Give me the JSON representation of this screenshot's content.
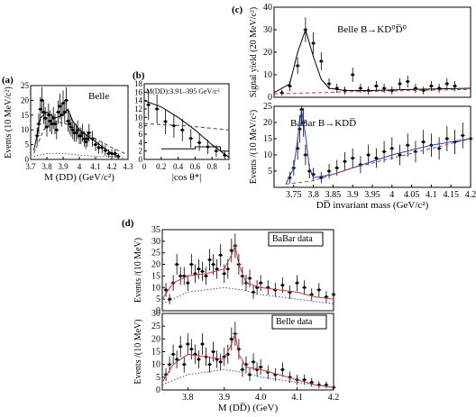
{
  "chart_data": [
    {
      "id": "a",
      "type": "scatter",
      "panel_label": "(a)",
      "annotation": "Belle",
      "xlabel": "M (DD) (GeV/c²)",
      "ylabel": "Events (10 MeV/c²)",
      "xlim": [
        3.7,
        4.3
      ],
      "ylim": [
        0,
        25
      ],
      "xticks": [
        "3.7",
        "3.8",
        "3.9",
        "4",
        "4.1",
        "4.2",
        "4.3"
      ],
      "yticks": [
        "0",
        "5",
        "10",
        "15",
        "20",
        "25"
      ],
      "series": [
        {
          "style": "points",
          "x": [
            3.74,
            3.75,
            3.76,
            3.77,
            3.78,
            3.79,
            3.8,
            3.81,
            3.82,
            3.83,
            3.84,
            3.85,
            3.86,
            3.87,
            3.88,
            3.89,
            3.9,
            3.91,
            3.92,
            3.93,
            3.94,
            3.95,
            3.96,
            3.97,
            3.98,
            3.99,
            4.0,
            4.01,
            4.02,
            4.03,
            4.04,
            4.05,
            4.06,
            4.08,
            4.1,
            4.12,
            4.14,
            4.16,
            4.18,
            4.2,
            4.22,
            4.24
          ],
          "y": [
            8,
            12,
            17,
            20,
            16,
            14,
            11,
            15,
            13,
            12,
            14,
            12,
            10,
            16,
            18,
            15,
            19,
            16,
            20,
            13,
            12,
            11,
            10,
            9,
            9,
            10,
            8,
            8,
            9,
            7,
            6,
            7,
            9,
            7,
            5,
            4,
            4,
            3,
            2,
            2,
            2,
            1
          ]
        },
        {
          "style": "curve",
          "x": [
            3.72,
            3.76,
            3.8,
            3.85,
            3.9,
            3.93,
            3.96,
            4.0,
            4.05,
            4.1,
            4.15,
            4.2,
            4.25
          ],
          "y": [
            3,
            14,
            16,
            14,
            15,
            17,
            13,
            10,
            8,
            6,
            4,
            2,
            1
          ]
        },
        {
          "style": "dashed",
          "x": [
            3.72,
            3.78,
            3.85,
            3.92,
            4.0,
            4.1,
            4.2,
            4.28
          ],
          "y": [
            2,
            10,
            13,
            12,
            10,
            7,
            4,
            2
          ]
        },
        {
          "style": "dotted",
          "x": [
            3.72,
            3.8,
            3.9,
            4.0,
            4.1,
            4.2,
            4.28
          ],
          "y": [
            1,
            2,
            2,
            1.5,
            1,
            1,
            0.5
          ]
        }
      ]
    },
    {
      "id": "b",
      "type": "scatter",
      "panel_label": "(b)",
      "annotation": "M(DD):3.91–395 GeV/c²",
      "xlabel": "|cos θ*|",
      "ylabel": "",
      "xlim": [
        0,
        1
      ],
      "ylim": [
        0,
        18
      ],
      "xticks": [
        "0",
        "0.2",
        "0.4",
        "0.6",
        "0.8",
        "1"
      ],
      "yticks": [
        "0",
        "2",
        "4",
        "6",
        "8",
        "10",
        "12",
        "14",
        "16",
        "18"
      ],
      "series": [
        {
          "style": "points",
          "x": [
            0.05,
            0.15,
            0.25,
            0.35,
            0.45,
            0.55,
            0.65,
            0.75,
            0.85,
            0.95
          ],
          "y": [
            13,
            12,
            9,
            8,
            7,
            5,
            4,
            3,
            2,
            1
          ]
        },
        {
          "style": "curve",
          "x": [
            0,
            0.2,
            0.4,
            0.6,
            0.8,
            1.0
          ],
          "y": [
            14,
            12.5,
            10,
            7,
            3.5,
            0.5
          ]
        },
        {
          "style": "dashed",
          "x": [
            0,
            0.5,
            1.0
          ],
          "y": [
            8.5,
            8,
            7
          ]
        },
        {
          "style": "step",
          "x": [
            0.2,
            0.4,
            0.6,
            0.8,
            0.9,
            1.0
          ],
          "y": [
            2.5,
            2.5,
            3,
            3,
            2,
            1.5
          ]
        }
      ]
    },
    {
      "id": "c-top",
      "type": "scatter",
      "panel_label": "(c)",
      "annotation": "Belle B→KD⁰D̅⁰",
      "ylabel": "Signal yield (20 MeV/c²)",
      "xlim": [
        3.7,
        4.2
      ],
      "ylim": [
        0,
        40
      ],
      "yticks": [
        "0",
        "10",
        "20",
        "30",
        "40"
      ],
      "series": [
        {
          "style": "points",
          "x": [
            3.72,
            3.74,
            3.76,
            3.78,
            3.8,
            3.82,
            3.84,
            3.86,
            3.88,
            3.9,
            3.92,
            3.94,
            3.96,
            3.98,
            4.0,
            4.02,
            4.04,
            4.06,
            4.08,
            4.1,
            4.12,
            4.14,
            4.16
          ],
          "y": [
            2,
            5,
            14,
            30,
            24,
            16,
            6,
            4,
            3,
            10,
            4,
            3,
            5,
            4,
            3,
            6,
            7,
            4,
            3,
            5,
            4,
            6,
            5
          ]
        },
        {
          "style": "curve",
          "x": [
            3.7,
            3.74,
            3.76,
            3.78,
            3.8,
            3.82,
            3.84,
            3.88,
            3.95,
            4.05,
            4.2
          ],
          "y": [
            2,
            6,
            20,
            30,
            18,
            8,
            4,
            3,
            3,
            3.5,
            4
          ]
        },
        {
          "style": "dashed",
          "x": [
            3.7,
            3.9,
            4.2
          ],
          "y": [
            1.5,
            2.5,
            3.5
          ]
        }
      ]
    },
    {
      "id": "c-bottom",
      "type": "scatter",
      "annotation": "BaBar B→KDD̅",
      "xlabel": "DD̅ invariant mass (GeV/c²)",
      "ylabel": "Events /(10 MeV/c²)",
      "xlim": [
        3.7,
        4.2
      ],
      "ylim": [
        0,
        25
      ],
      "xticks": [
        "3.75",
        "3.8",
        "3.85",
        "3.9",
        "3.95",
        "4",
        "4.05",
        "4.1",
        "4.15",
        "4.2"
      ],
      "yticks": [
        "5",
        "10",
        "15",
        "20",
        "25"
      ],
      "series": [
        {
          "style": "points",
          "x": [
            3.74,
            3.75,
            3.76,
            3.765,
            3.77,
            3.775,
            3.78,
            3.79,
            3.8,
            3.82,
            3.84,
            3.86,
            3.88,
            3.9,
            3.92,
            3.94,
            3.96,
            3.98,
            4.0,
            4.02,
            4.04,
            4.06,
            4.08,
            4.1,
            4.12,
            4.14,
            4.16,
            4.18,
            4.2
          ],
          "y": [
            3,
            6,
            12,
            18,
            24,
            20,
            10,
            5,
            4,
            3,
            5,
            6,
            8,
            9,
            7,
            10,
            9,
            11,
            12,
            10,
            13,
            11,
            14,
            13,
            12,
            15,
            14,
            16,
            15
          ]
        },
        {
          "style": "curve",
          "x": [
            3.73,
            3.75,
            3.76,
            3.77,
            3.78,
            3.79,
            3.8,
            3.85,
            3.9,
            4.0,
            4.1,
            4.2
          ],
          "y": [
            1,
            6,
            15,
            24,
            16,
            6,
            3,
            4,
            6,
            10,
            13,
            15
          ]
        },
        {
          "style": "dashed",
          "x": [
            3.73,
            3.8,
            3.9,
            4.0,
            4.1,
            4.2
          ],
          "y": [
            1,
            2,
            6,
            9,
            12,
            15
          ]
        }
      ]
    },
    {
      "id": "d-top",
      "type": "scatter",
      "panel_label": "(d)",
      "annotation": "BaBar data",
      "ylabel": "Events /(10 MeV)",
      "xlim": [
        3.73,
        4.2
      ],
      "ylim": [
        0,
        35
      ],
      "yticks": [
        "0",
        "5",
        "10",
        "15",
        "20",
        "25",
        "30",
        "35"
      ],
      "series": [
        {
          "style": "points",
          "x": [
            3.74,
            3.75,
            3.76,
            3.77,
            3.78,
            3.79,
            3.8,
            3.81,
            3.82,
            3.83,
            3.84,
            3.85,
            3.86,
            3.87,
            3.88,
            3.89,
            3.9,
            3.91,
            3.92,
            3.93,
            3.94,
            3.95,
            3.96,
            3.97,
            3.98,
            3.99,
            4.0,
            4.02,
            4.04,
            4.06,
            4.08,
            4.1,
            4.12,
            4.14,
            4.16,
            4.18,
            4.2
          ],
          "y": [
            9,
            5,
            12,
            20,
            15,
            15,
            12,
            20,
            16,
            18,
            17,
            15,
            22,
            20,
            18,
            24,
            16,
            18,
            26,
            28,
            20,
            15,
            12,
            14,
            8,
            10,
            12,
            10,
            9,
            11,
            8,
            12,
            10,
            7,
            9,
            6,
            7
          ]
        },
        {
          "style": "curve",
          "x": [
            3.73,
            3.76,
            3.8,
            3.85,
            3.9,
            3.92,
            3.93,
            3.94,
            3.96,
            4.0,
            4.05,
            4.1,
            4.15,
            4.2
          ],
          "y": [
            5,
            12,
            15,
            16,
            18,
            24,
            28,
            20,
            12,
            10,
            9,
            8,
            6,
            5
          ]
        },
        {
          "style": "dotted",
          "x": [
            3.73,
            3.8,
            3.9,
            3.95,
            4.0,
            4.1,
            4.2
          ],
          "y": [
            3,
            8,
            10,
            9,
            7,
            5,
            3
          ]
        }
      ]
    },
    {
      "id": "d-bottom",
      "type": "scatter",
      "annotation": "Belle data",
      "xlabel": "M (DD̅) (GeV)",
      "ylabel": "Events /(10 MeV)",
      "xlim": [
        3.73,
        4.2
      ],
      "ylim": [
        0,
        30
      ],
      "xticks": [
        "3.8",
        "3.9",
        "4.0",
        "4.1",
        "4.2"
      ],
      "yticks": [
        "0",
        "5",
        "10",
        "15",
        "20",
        "25",
        "30"
      ],
      "series": [
        {
          "style": "points",
          "x": [
            3.74,
            3.75,
            3.76,
            3.77,
            3.78,
            3.79,
            3.8,
            3.81,
            3.82,
            3.83,
            3.84,
            3.85,
            3.86,
            3.87,
            3.88,
            3.89,
            3.9,
            3.91,
            3.92,
            3.93,
            3.94,
            3.95,
            3.96,
            3.97,
            3.98,
            3.99,
            4.0,
            4.02,
            4.04,
            4.06,
            4.08,
            4.1,
            4.12,
            4.14,
            4.16,
            4.18,
            4.2
          ],
          "y": [
            6,
            10,
            14,
            12,
            17,
            10,
            18,
            16,
            14,
            12,
            18,
            13,
            10,
            15,
            12,
            11,
            13,
            14,
            20,
            22,
            16,
            8,
            10,
            6,
            11,
            8,
            9,
            7,
            6,
            8,
            5,
            4,
            4,
            3,
            2,
            2,
            1
          ]
        },
        {
          "style": "curve",
          "x": [
            3.73,
            3.76,
            3.8,
            3.85,
            3.9,
            3.92,
            3.93,
            3.94,
            3.96,
            4.0,
            4.05,
            4.1,
            4.15,
            4.2
          ],
          "y": [
            3,
            10,
            14,
            13,
            12,
            18,
            22,
            14,
            9,
            8,
            6,
            4,
            2,
            1
          ]
        },
        {
          "style": "dotted",
          "x": [
            3.73,
            3.8,
            3.9,
            3.95,
            4.0,
            4.1,
            4.2
          ],
          "y": [
            2,
            6,
            8,
            7,
            5,
            3,
            1
          ]
        }
      ]
    }
  ]
}
